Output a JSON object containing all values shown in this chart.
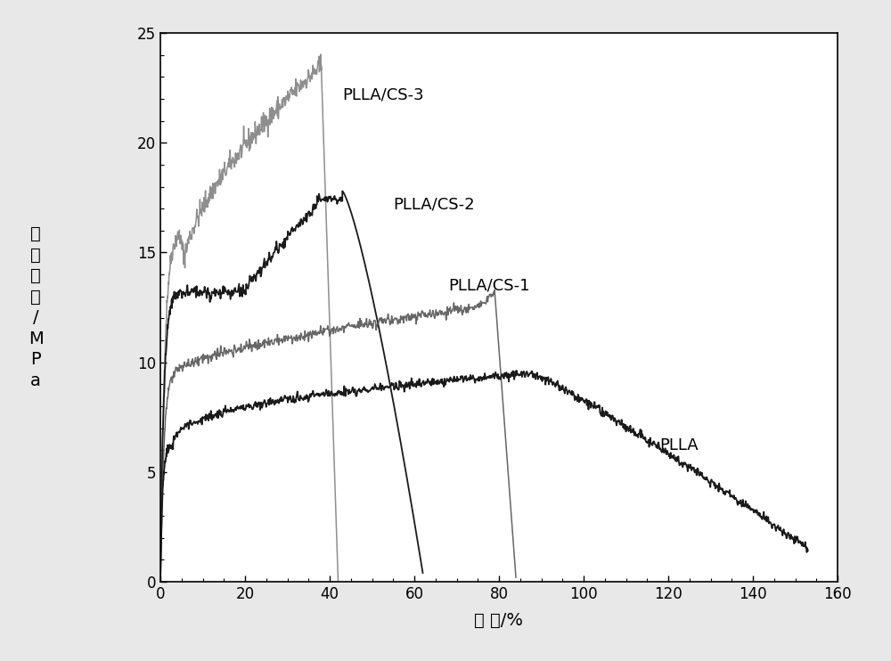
{
  "xlabel": "应 变/%",
  "ylabel_chars": [
    "拉",
    "伸",
    "应",
    "力",
    "/",
    "M",
    "P",
    "a"
  ],
  "xlim": [
    0,
    160
  ],
  "ylim": [
    0,
    25
  ],
  "xticks": [
    0,
    20,
    40,
    60,
    80,
    100,
    120,
    140,
    160
  ],
  "yticks": [
    0,
    5,
    10,
    15,
    20,
    25
  ],
  "bg_color": "#e8e8e8",
  "plot_bg_color": "#ffffff",
  "series": [
    {
      "label": "PLLA/CS-3",
      "color": "#888888",
      "ann_x": 43,
      "ann_y": 22.0
    },
    {
      "label": "PLLA/CS-2",
      "color": "#1a1a1a",
      "ann_x": 55,
      "ann_y": 17.0
    },
    {
      "label": "PLLA/CS-1",
      "color": "#555555",
      "ann_x": 68,
      "ann_y": 13.3
    },
    {
      "label": "PLLA",
      "color": "#1a1a1a",
      "ann_x": 118,
      "ann_y": 6.0
    }
  ]
}
